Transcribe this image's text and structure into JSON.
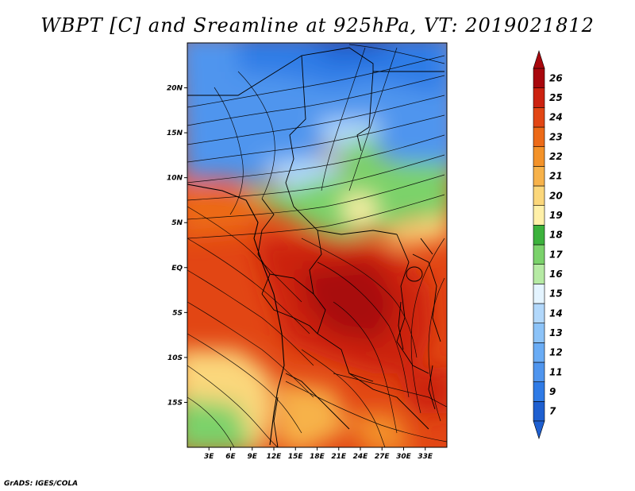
{
  "title": "WBPT [C] and Sreamline at 925hPa, VT: 2019021812",
  "footer": "GrADS: IGES/COLA",
  "map": {
    "lon_range": [
      0,
      36
    ],
    "lat_range": [
      -20,
      25
    ],
    "lon_ticks": [
      "3E",
      "6E",
      "9E",
      "12E",
      "15E",
      "18E",
      "21E",
      "24E",
      "27E",
      "30E",
      "33E"
    ],
    "lon_tick_values": [
      3,
      6,
      9,
      12,
      15,
      18,
      21,
      24,
      27,
      30,
      33
    ],
    "lat_ticks": [
      "20N",
      "15N",
      "10N",
      "5N",
      "EQ",
      "5S",
      "10S",
      "15S"
    ],
    "lat_tick_values": [
      20,
      15,
      10,
      5,
      0,
      -5,
      -10,
      -15
    ]
  },
  "colorbar": {
    "labels": [
      "7",
      "9",
      "11",
      "12",
      "13",
      "14",
      "15",
      "16",
      "17",
      "18",
      "19",
      "20",
      "21",
      "22",
      "23",
      "24",
      "25",
      "26"
    ],
    "colors": [
      "#1e5fd0",
      "#2f7be6",
      "#4f95ee",
      "#6aacf5",
      "#8cc3f8",
      "#b2d8fb",
      "#e4f4ff",
      "#b6eaa4",
      "#7bd26b",
      "#3cb23c",
      "#fff0a8",
      "#fbd77b",
      "#f7b24a",
      "#f39229",
      "#ec6a18",
      "#e24614",
      "#cc2210",
      "#a8070d"
    ]
  }
}
